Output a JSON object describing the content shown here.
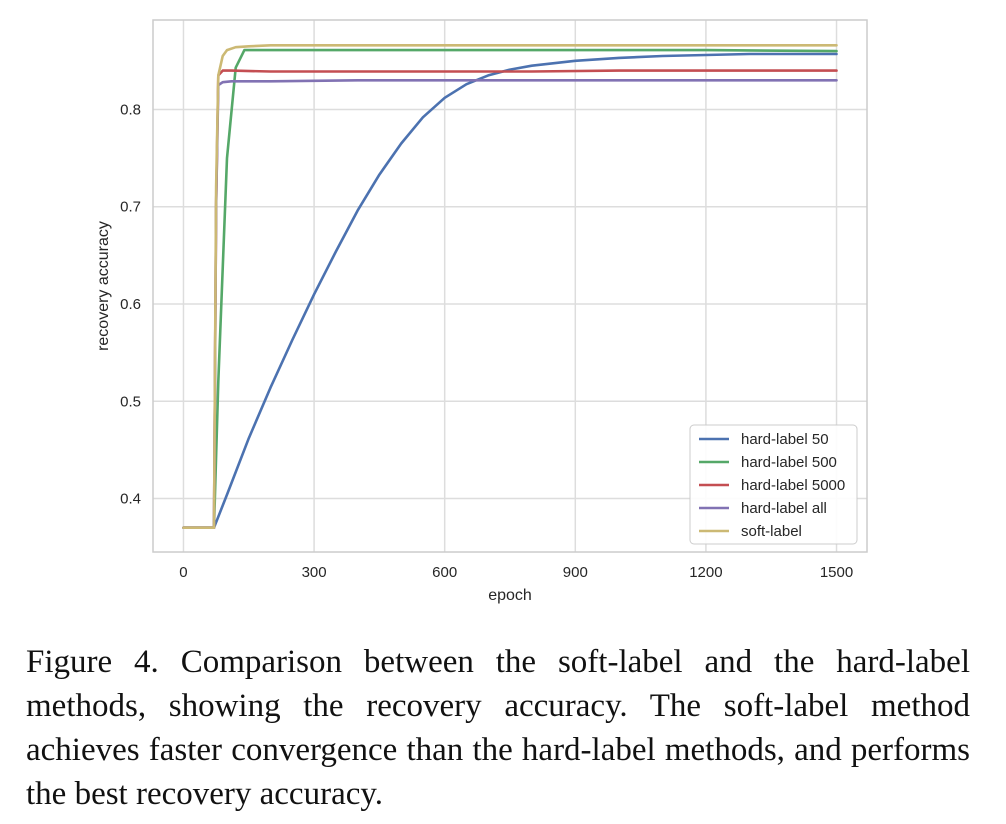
{
  "chart_data": {
    "type": "line",
    "title": "",
    "xlabel": "epoch",
    "ylabel": "recovery accuracy",
    "xlim": [
      -70,
      1570
    ],
    "ylim": [
      0.345,
      0.892
    ],
    "xticks": [
      0,
      300,
      600,
      900,
      1200,
      1500
    ],
    "yticks": [
      0.4,
      0.5,
      0.6,
      0.7,
      0.8
    ],
    "grid": true,
    "legend_position": "bottom-right",
    "series": [
      {
        "name": "hard-label 50",
        "color": "#4c72b0",
        "x": [
          0,
          70,
          100,
          150,
          200,
          250,
          300,
          350,
          400,
          450,
          500,
          550,
          600,
          650,
          700,
          750,
          800,
          900,
          1000,
          1100,
          1200,
          1300,
          1400,
          1500
        ],
        "y": [
          0.37,
          0.37,
          0.404,
          0.462,
          0.514,
          0.563,
          0.61,
          0.654,
          0.696,
          0.733,
          0.765,
          0.792,
          0.812,
          0.826,
          0.835,
          0.841,
          0.845,
          0.85,
          0.853,
          0.855,
          0.856,
          0.857,
          0.857,
          0.857
        ]
      },
      {
        "name": "hard-label 500",
        "color": "#55a868",
        "x": [
          0,
          70,
          80,
          100,
          120,
          140,
          160,
          200,
          400,
          600,
          800,
          1000,
          1200,
          1500
        ],
        "y": [
          0.37,
          0.37,
          0.52,
          0.75,
          0.843,
          0.861,
          0.861,
          0.861,
          0.861,
          0.861,
          0.861,
          0.861,
          0.861,
          0.86
        ]
      },
      {
        "name": "hard-label 5000",
        "color": "#c44e52",
        "x": [
          0,
          70,
          75,
          80,
          90,
          110,
          200,
          400,
          600,
          800,
          1000,
          1200,
          1500
        ],
        "y": [
          0.37,
          0.37,
          0.7,
          0.835,
          0.84,
          0.84,
          0.839,
          0.839,
          0.839,
          0.839,
          0.84,
          0.84,
          0.84
        ]
      },
      {
        "name": "hard-label all",
        "color": "#8172b3",
        "x": [
          0,
          70,
          75,
          80,
          90,
          110,
          200,
          400,
          600,
          800,
          1000,
          1200,
          1500
        ],
        "y": [
          0.37,
          0.37,
          0.7,
          0.825,
          0.828,
          0.829,
          0.829,
          0.83,
          0.83,
          0.83,
          0.83,
          0.83,
          0.83
        ]
      },
      {
        "name": "soft-label",
        "color": "#ccb974",
        "x": [
          0,
          70,
          75,
          80,
          90,
          100,
          120,
          150,
          200,
          400,
          600,
          800,
          1000,
          1200,
          1500
        ],
        "y": [
          0.37,
          0.37,
          0.72,
          0.835,
          0.855,
          0.861,
          0.864,
          0.865,
          0.866,
          0.866,
          0.866,
          0.866,
          0.866,
          0.866,
          0.866
        ]
      }
    ]
  },
  "caption": "Figure 4. Comparison between the soft-label and the hard-label methods, showing the recovery accuracy.  The soft-label method achieves faster convergence than the hard-label methods, and performs the best recovery accuracy."
}
